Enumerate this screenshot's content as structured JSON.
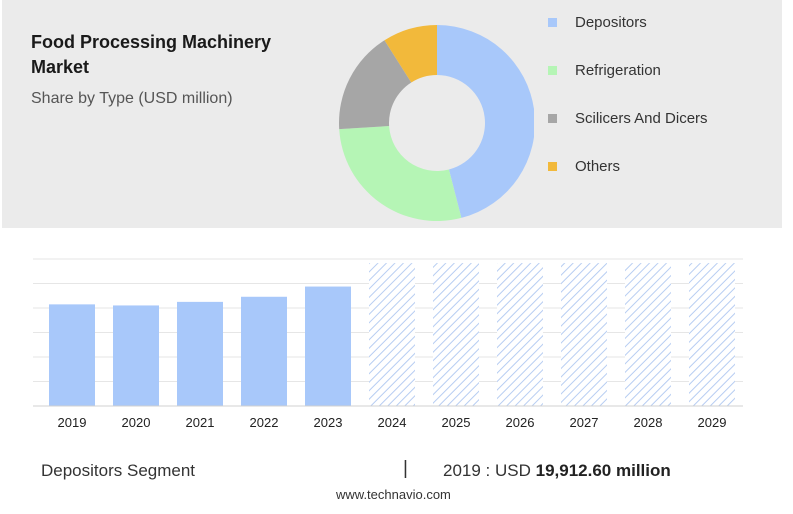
{
  "title": "Food Processing Machinery Market",
  "subtitle": "Share by Type (USD million)",
  "chart_data": [
    {
      "type": "pie",
      "donut": true,
      "slices": [
        {
          "label": "Depositors",
          "value": 46,
          "color": "#a8c8fa"
        },
        {
          "label": "Refrigeration",
          "value": 28,
          "color": "#b5f5b5"
        },
        {
          "label": "Scilicers And Dicers",
          "value": 17,
          "color": "#a6a6a6"
        },
        {
          "label": "Others",
          "value": 9,
          "color": "#f2b93b"
        }
      ],
      "legend_position": "right"
    },
    {
      "type": "bar",
      "title": "Depositors Segment",
      "categories": [
        "2019",
        "2020",
        "2021",
        "2022",
        "2023",
        "2024",
        "2025",
        "2026",
        "2027",
        "2028",
        "2029"
      ],
      "values": [
        19912.6,
        19700,
        20400,
        21400,
        23400,
        null,
        null,
        null,
        null,
        null,
        null
      ],
      "forecast_categories": [
        "2024",
        "2025",
        "2026",
        "2027",
        "2028",
        "2029"
      ],
      "forecast_level": 28000,
      "ylim": [
        0,
        28800
      ],
      "grid": true,
      "color": "#a8c8fa"
    }
  ],
  "footer": {
    "segment_label": "Depositors Segment",
    "separator": "|",
    "value_prefix": "2019 : USD",
    "value_amount": "19,912.60 million"
  },
  "source": "www.technavio.com"
}
